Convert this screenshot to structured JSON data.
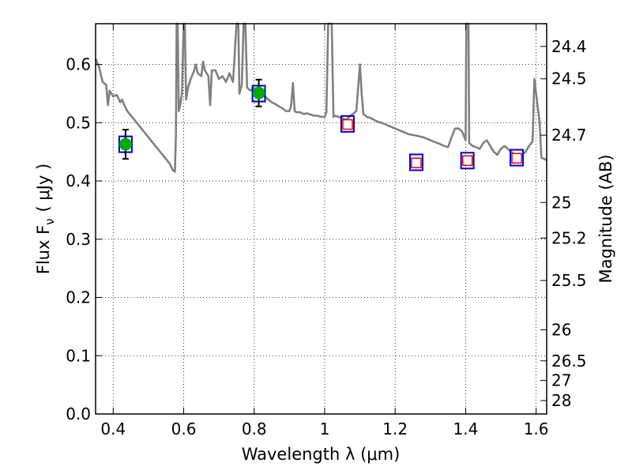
{
  "chart_data": {
    "type": "scatter",
    "xlabel": "Wavelength  λ (μm)",
    "ylabel": "Flux  F",
    "ylabel_sub": "ν",
    "ylabel_unit": "( μJy )",
    "y2label": "Magnitude (AB)",
    "xlim": [
      0.35,
      1.63
    ],
    "ylim": [
      0.0,
      0.67
    ],
    "grid": true,
    "x_ticks": [
      0.4,
      0.6,
      0.8,
      1.0,
      1.2,
      1.4,
      1.6
    ],
    "x_tick_labels": [
      "0.4",
      "0.6",
      "0.8",
      "1",
      "1.2",
      "1.4",
      "1.6"
    ],
    "y_ticks": [
      0.0,
      0.1,
      0.2,
      0.3,
      0.4,
      0.5,
      0.6
    ],
    "y_tick_labels": [
      "0.0",
      "0.1",
      "0.2",
      "0.3",
      "0.4",
      "0.5",
      "0.6"
    ],
    "y2_ticks": [
      {
        "label": "24.4",
        "flux": 0.631
      },
      {
        "label": "24.5",
        "flux": 0.5754
      },
      {
        "label": "24.7",
        "flux": 0.4786
      },
      {
        "label": "25",
        "flux": 0.3631
      },
      {
        "label": "25.2",
        "flux": 0.302
      },
      {
        "label": "25.5",
        "flux": 0.2291
      },
      {
        "label": "26",
        "flux": 0.1445
      },
      {
        "label": "26.5",
        "flux": 0.0912
      },
      {
        "label": "27",
        "flux": 0.0575
      },
      {
        "label": "28",
        "flux": 0.0229
      }
    ],
    "series": [
      {
        "kind": "line",
        "color": "#808080",
        "points": [
          [
            0.35,
            0.61
          ],
          [
            0.36,
            0.595
          ],
          [
            0.37,
            0.57
          ],
          [
            0.38,
            0.565
          ],
          [
            0.385,
            0.53
          ],
          [
            0.39,
            0.555
          ],
          [
            0.4,
            0.545
          ],
          [
            0.41,
            0.548
          ],
          [
            0.42,
            0.535
          ],
          [
            0.425,
            0.54
          ],
          [
            0.43,
            0.532
          ],
          [
            0.44,
            0.52
          ],
          [
            0.46,
            0.505
          ],
          [
            0.48,
            0.49
          ],
          [
            0.5,
            0.475
          ],
          [
            0.52,
            0.46
          ],
          [
            0.54,
            0.445
          ],
          [
            0.56,
            0.43
          ],
          [
            0.57,
            0.418
          ],
          [
            0.575,
            0.416
          ],
          [
            0.578,
            0.48
          ],
          [
            0.58,
            0.67
          ],
          [
            0.583,
            0.67
          ],
          [
            0.586,
            0.52
          ],
          [
            0.59,
            0.53
          ],
          [
            0.595,
            0.55
          ],
          [
            0.6,
            0.67
          ],
          [
            0.603,
            0.67
          ],
          [
            0.607,
            0.54
          ],
          [
            0.612,
            0.56
          ],
          [
            0.62,
            0.575
          ],
          [
            0.63,
            0.59
          ],
          [
            0.634,
            0.6
          ],
          [
            0.64,
            0.585
          ],
          [
            0.65,
            0.58
          ],
          [
            0.655,
            0.605
          ],
          [
            0.66,
            0.59
          ],
          [
            0.67,
            0.58
          ],
          [
            0.675,
            0.53
          ],
          [
            0.68,
            0.59
          ],
          [
            0.69,
            0.59
          ],
          [
            0.7,
            0.575
          ],
          [
            0.71,
            0.58
          ],
          [
            0.72,
            0.57
          ],
          [
            0.73,
            0.585
          ],
          [
            0.74,
            0.57
          ],
          [
            0.75,
            0.67
          ],
          [
            0.755,
            0.67
          ],
          [
            0.758,
            0.55
          ],
          [
            0.765,
            0.565
          ],
          [
            0.77,
            0.67
          ],
          [
            0.775,
            0.67
          ],
          [
            0.78,
            0.56
          ],
          [
            0.79,
            0.555
          ],
          [
            0.8,
            0.56
          ],
          [
            0.81,
            0.55
          ],
          [
            0.82,
            0.555
          ],
          [
            0.83,
            0.545
          ],
          [
            0.84,
            0.54
          ],
          [
            0.85,
            0.535
          ],
          [
            0.86,
            0.532
          ],
          [
            0.87,
            0.528
          ],
          [
            0.88,
            0.525
          ],
          [
            0.89,
            0.52
          ],
          [
            0.9,
            0.52
          ],
          [
            0.905,
            0.53
          ],
          [
            0.91,
            0.568
          ],
          [
            0.915,
            0.52
          ],
          [
            0.92,
            0.518
          ],
          [
            0.93,
            0.518
          ],
          [
            0.94,
            0.515
          ],
          [
            0.95,
            0.516
          ],
          [
            0.96,
            0.514
          ],
          [
            0.97,
            0.512
          ],
          [
            0.98,
            0.512
          ],
          [
            0.99,
            0.51
          ],
          [
            1.0,
            0.51
          ],
          [
            1.005,
            0.518
          ],
          [
            1.01,
            0.67
          ],
          [
            1.02,
            0.67
          ],
          [
            1.025,
            0.51
          ],
          [
            1.03,
            0.512
          ],
          [
            1.04,
            0.51
          ],
          [
            1.05,
            0.508
          ],
          [
            1.06,
            0.505
          ],
          [
            1.07,
            0.51
          ],
          [
            1.08,
            0.515
          ],
          [
            1.09,
            0.52
          ],
          [
            1.1,
            0.6
          ],
          [
            1.105,
            0.55
          ],
          [
            1.11,
            0.515
          ],
          [
            1.12,
            0.51
          ],
          [
            1.13,
            0.508
          ],
          [
            1.14,
            0.505
          ],
          [
            1.15,
            0.502
          ],
          [
            1.16,
            0.5
          ],
          [
            1.17,
            0.498
          ],
          [
            1.18,
            0.495
          ],
          [
            1.2,
            0.49
          ],
          [
            1.22,
            0.485
          ],
          [
            1.24,
            0.48
          ],
          [
            1.26,
            0.478
          ],
          [
            1.28,
            0.475
          ],
          [
            1.3,
            0.47
          ],
          [
            1.32,
            0.465
          ],
          [
            1.34,
            0.46
          ],
          [
            1.35,
            0.458
          ],
          [
            1.36,
            0.475
          ],
          [
            1.37,
            0.49
          ],
          [
            1.38,
            0.49
          ],
          [
            1.39,
            0.485
          ],
          [
            1.4,
            0.47
          ],
          [
            1.402,
            0.67
          ],
          [
            1.408,
            0.67
          ],
          [
            1.41,
            0.465
          ],
          [
            1.42,
            0.46
          ],
          [
            1.43,
            0.458
          ],
          [
            1.44,
            0.455
          ],
          [
            1.45,
            0.465
          ],
          [
            1.46,
            0.47
          ],
          [
            1.47,
            0.46
          ],
          [
            1.48,
            0.45
          ],
          [
            1.49,
            0.445
          ],
          [
            1.5,
            0.455
          ],
          [
            1.51,
            0.46
          ],
          [
            1.52,
            0.455
          ],
          [
            1.53,
            0.45
          ],
          [
            1.54,
            0.445
          ],
          [
            1.55,
            0.445
          ],
          [
            1.56,
            0.445
          ],
          [
            1.57,
            0.45
          ],
          [
            1.58,
            0.46
          ],
          [
            1.59,
            0.468
          ],
          [
            1.595,
            0.575
          ],
          [
            1.6,
            0.55
          ],
          [
            1.61,
            0.5
          ],
          [
            1.615,
            0.44
          ],
          [
            1.63,
            0.436
          ]
        ]
      },
      {
        "kind": "model_boxes",
        "color": "#0000cc",
        "points": [
          [
            0.435,
            0.463
          ],
          [
            0.813,
            0.55
          ],
          [
            1.065,
            0.498
          ],
          [
            1.26,
            0.432
          ],
          [
            1.405,
            0.435
          ],
          [
            1.545,
            0.44
          ]
        ]
      },
      {
        "kind": "observed",
        "color": "#00aa00",
        "points": [
          [
            0.435,
            0.463,
            0.025
          ],
          [
            0.813,
            0.551,
            0.023
          ]
        ]
      },
      {
        "kind": "upper_limits",
        "color": "#ee0000",
        "points": [
          [
            1.065,
            0.497
          ],
          [
            1.26,
            0.431
          ],
          [
            1.405,
            0.435
          ],
          [
            1.545,
            0.439
          ]
        ]
      }
    ]
  }
}
